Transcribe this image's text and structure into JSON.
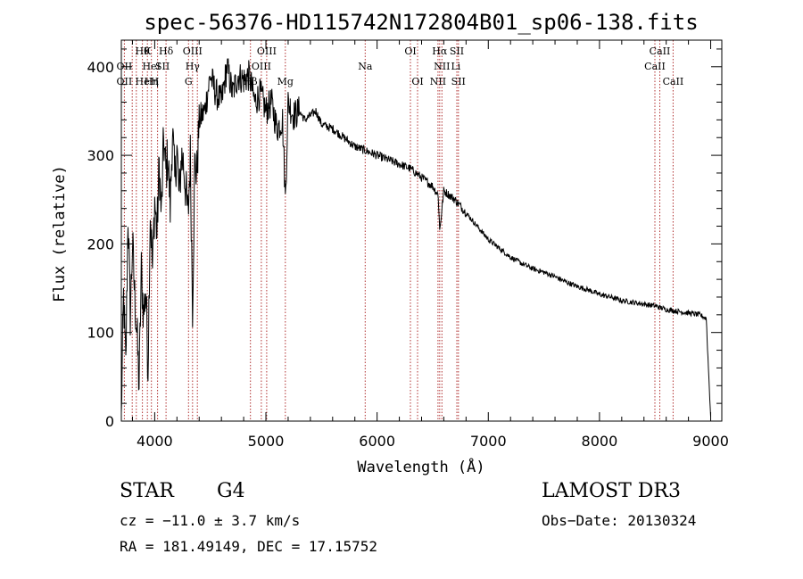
{
  "chart_data": {
    "type": "line",
    "title": "spec-56376-HD115742N172804B01_sp06-138.fits",
    "xlabel": "Wavelength (Å)",
    "ylabel": "Flux (relative)",
    "xlim": [
      3700,
      9100
    ],
    "ylim": [
      0,
      430
    ],
    "x_ticks": [
      4000,
      5000,
      6000,
      7000,
      8000,
      9000
    ],
    "y_ticks": [
      0,
      100,
      200,
      300,
      400
    ],
    "grid": false,
    "series": [
      {
        "name": "spectrum",
        "x": [
          3700,
          3720,
          3740,
          3760,
          3780,
          3800,
          3820,
          3840,
          3860,
          3880,
          3900,
          3920,
          3940,
          3960,
          3980,
          4000,
          4020,
          4040,
          4060,
          4080,
          4100,
          4120,
          4140,
          4160,
          4180,
          4200,
          4220,
          4240,
          4260,
          4280,
          4300,
          4320,
          4340,
          4360,
          4380,
          4400,
          4450,
          4500,
          4550,
          4600,
          4650,
          4700,
          4750,
          4800,
          4850,
          4900,
          4950,
          5000,
          5050,
          5100,
          5150,
          5175,
          5200,
          5250,
          5300,
          5350,
          5400,
          5450,
          5500,
          5600,
          5700,
          5800,
          5900,
          6000,
          6100,
          6200,
          6300,
          6400,
          6500,
          6550,
          6563,
          6600,
          6700,
          6800,
          6900,
          7000,
          7100,
          7200,
          7300,
          7400,
          7500,
          7600,
          7700,
          7800,
          7900,
          8000,
          8100,
          8200,
          8300,
          8400,
          8500,
          8600,
          8700,
          8800,
          8900,
          8960,
          8980,
          9000
        ],
        "y": [
          10,
          140,
          60,
          235,
          120,
          200,
          140,
          100,
          40,
          170,
          120,
          150,
          60,
          240,
          170,
          250,
          210,
          290,
          230,
          320,
          280,
          300,
          240,
          330,
          270,
          310,
          250,
          300,
          290,
          260,
          230,
          300,
          130,
          290,
          280,
          340,
          350,
          390,
          370,
          360,
          400,
          370,
          390,
          385,
          390,
          360,
          370,
          350,
          360,
          330,
          340,
          250,
          360,
          345,
          350,
          340,
          345,
          350,
          335,
          330,
          320,
          310,
          305,
          300,
          295,
          290,
          285,
          275,
          265,
          255,
          215,
          260,
          250,
          235,
          220,
          205,
          195,
          185,
          178,
          172,
          168,
          163,
          157,
          152,
          148,
          143,
          140,
          136,
          134,
          132,
          130,
          126,
          124,
          122,
          120,
          116,
          60,
          5
        ]
      }
    ],
    "line_labels": [
      {
        "w": 3889,
        "text": "Hθ",
        "row": 0
      },
      {
        "w": 3934,
        "text": "K",
        "row": 0
      },
      {
        "w": 4102,
        "text": "Hδ",
        "row": 0
      },
      {
        "w": 4340,
        "text": "OIII",
        "row": 0
      },
      {
        "w": 5007,
        "text": "OIII",
        "row": 0
      },
      {
        "w": 6300,
        "text": "OI",
        "row": 0
      },
      {
        "w": 6563,
        "text": "Hα",
        "row": 0
      },
      {
        "w": 6717,
        "text": "SII",
        "row": 0
      },
      {
        "w": 8542,
        "text": "CaII",
        "row": 0
      },
      {
        "w": 3727,
        "text": "OII",
        "row": 1
      },
      {
        "w": 3970,
        "text": "HeI",
        "row": 1
      },
      {
        "w": 4070,
        "text": "SII",
        "row": 1
      },
      {
        "w": 4340,
        "text": "Hγ",
        "row": 1
      },
      {
        "w": 4959,
        "text": "OIII",
        "row": 1
      },
      {
        "w": 5893,
        "text": "Na",
        "row": 1
      },
      {
        "w": 6583,
        "text": "NII",
        "row": 1
      },
      {
        "w": 6708,
        "text": "Li",
        "row": 1
      },
      {
        "w": 8498,
        "text": "CaII",
        "row": 1
      },
      {
        "w": 3727,
        "text": "OII",
        "row": 2
      },
      {
        "w": 3889,
        "text": "He",
        "row": 2
      },
      {
        "w": 3970,
        "text": "Hη",
        "row": 2
      },
      {
        "w": 4000,
        "text": "H",
        "row": 2
      },
      {
        "w": 4304,
        "text": "G",
        "row": 2
      },
      {
        "w": 4861,
        "text": "Hβ",
        "row": 2
      },
      {
        "w": 5175,
        "text": "Mg",
        "row": 2
      },
      {
        "w": 6364,
        "text": "OI",
        "row": 2
      },
      {
        "w": 6548,
        "text": "NII",
        "row": 2
      },
      {
        "w": 6731,
        "text": "SII",
        "row": 2
      },
      {
        "w": 8662,
        "text": "CaII",
        "row": 2
      }
    ],
    "marker_lines": [
      3727,
      3798,
      3835,
      3889,
      3934,
      3970,
      4026,
      4102,
      4304,
      4340,
      4384,
      4861,
      4959,
      5007,
      5175,
      5893,
      6300,
      6364,
      6548,
      6563,
      6583,
      6717,
      6731,
      8498,
      8542,
      8662
    ]
  },
  "annotations": {
    "object_class": "STAR",
    "subclass": "G4",
    "survey": "LAMOST DR3",
    "cz": "cz = −11.0 ± 3.7 km/s",
    "obs_date": "Obs−Date: 20130324",
    "coords": "RA = 181.49149, DEC =  17.15752"
  },
  "colors": {
    "spectrum": "#000000",
    "marker_line": "#b03030",
    "axis": "#000000"
  }
}
